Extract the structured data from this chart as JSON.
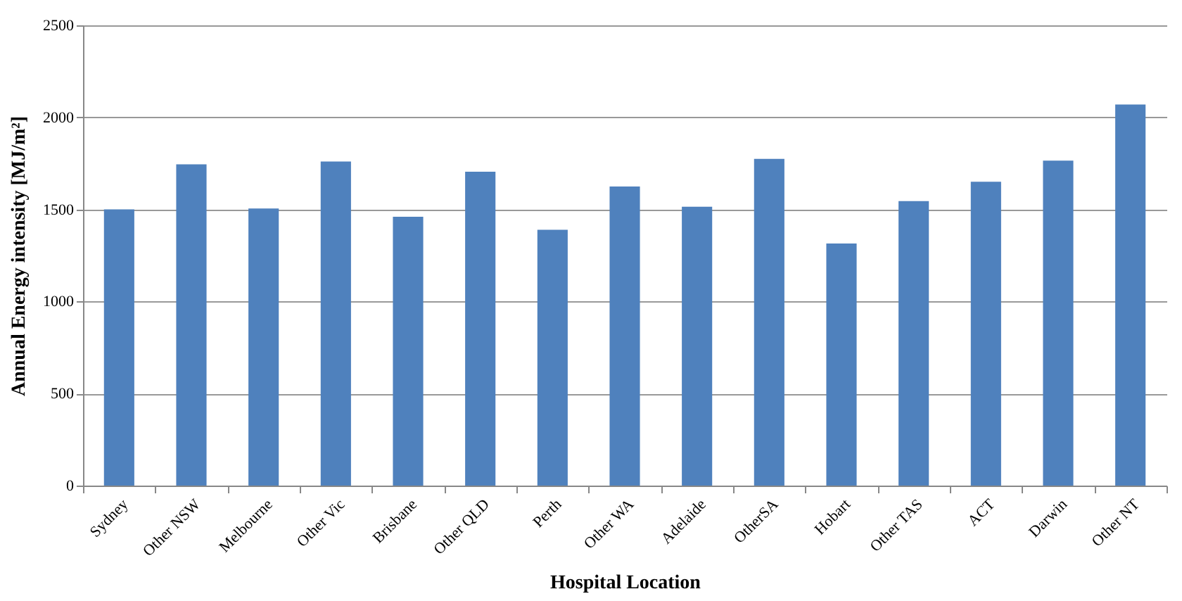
{
  "chart_data": {
    "type": "bar",
    "xlabel": "Hospital Location",
    "ylabel": "Annual Energy intensity [MJ/m²]",
    "categories": [
      "Sydney",
      "Other NSW",
      "Melbourne",
      "Other Vic",
      "Brisbane",
      "Other QLD",
      "Perth",
      "Other WA",
      "Adelaide",
      "OtherSA",
      "Hobart",
      "Other TAS",
      "ACT",
      "Darwin",
      "Other NT"
    ],
    "values": [
      1500,
      1745,
      1505,
      1760,
      1460,
      1705,
      1390,
      1625,
      1515,
      1775,
      1315,
      1545,
      1650,
      1765,
      2070
    ],
    "color": "#4f81bd",
    "ylim": [
      0,
      2500
    ],
    "yticks": [
      0,
      500,
      1000,
      1500,
      2000,
      2500
    ],
    "grid": "y"
  }
}
